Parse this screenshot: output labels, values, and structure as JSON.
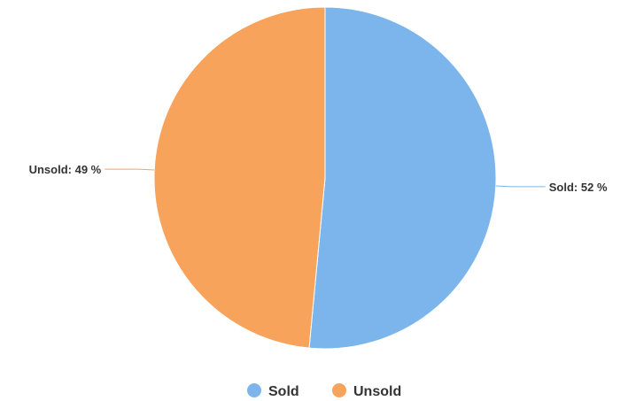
{
  "chart_data": {
    "type": "pie",
    "title": "",
    "slices": [
      {
        "name": "Sold",
        "value": 52,
        "label": "Sold: 52 %",
        "color": "#7cb5ec"
      },
      {
        "name": "Unsold",
        "value": 49,
        "label": "Unsold: 49 %",
        "color": "#f7a35c"
      }
    ],
    "start_angle_deg": 0,
    "direction": "clockwise",
    "legend": {
      "position": "bottom-center",
      "items": [
        {
          "label": "Sold",
          "color": "#7cb5ec"
        },
        {
          "label": "Unsold",
          "color": "#f7a35c"
        }
      ]
    }
  }
}
